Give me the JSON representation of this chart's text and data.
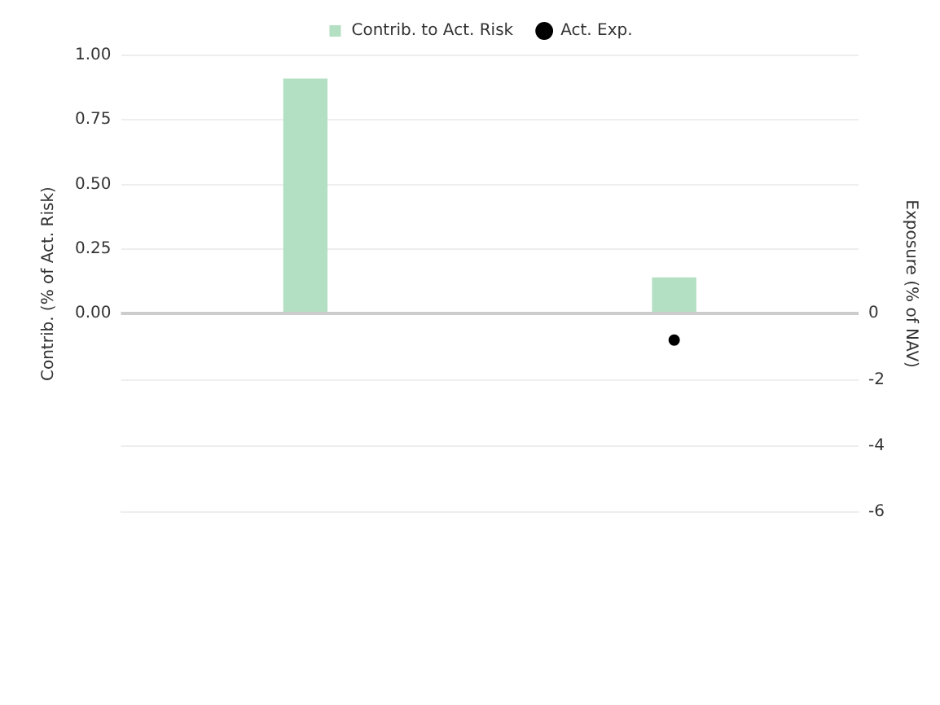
{
  "chart_data": {
    "type": "bar",
    "categories": [
      null,
      null
    ],
    "series": [
      {
        "name": "Contrib. to Act. Risk",
        "color": "#b3dfc3",
        "values": [
          0.91,
          0.14
        ]
      },
      {
        "name": "Act. Exp.",
        "type": "scatter",
        "axis": "y2",
        "color": "#000000",
        "values": [
          null,
          -0.8
        ]
      }
    ],
    "ylabel": "Contrib. (% of Act. Risk)",
    "y2label": "Exposure (% of NAV)",
    "ylim": [
      -0.77,
      1.0
    ],
    "yticks": [
      {
        "value": 0,
        "label": "0.00"
      },
      {
        "value": 0.25,
        "label": "0.25"
      },
      {
        "value": 0.5,
        "label": "0.50"
      },
      {
        "value": 0.75,
        "label": "0.75"
      },
      {
        "value": 1,
        "label": "1.00"
      }
    ],
    "y2lim": [
      -6,
      7.8
    ],
    "y2ticks": [
      -6,
      -4,
      -2,
      0
    ],
    "grid": true,
    "legend": "top",
    "marker": "circle"
  }
}
